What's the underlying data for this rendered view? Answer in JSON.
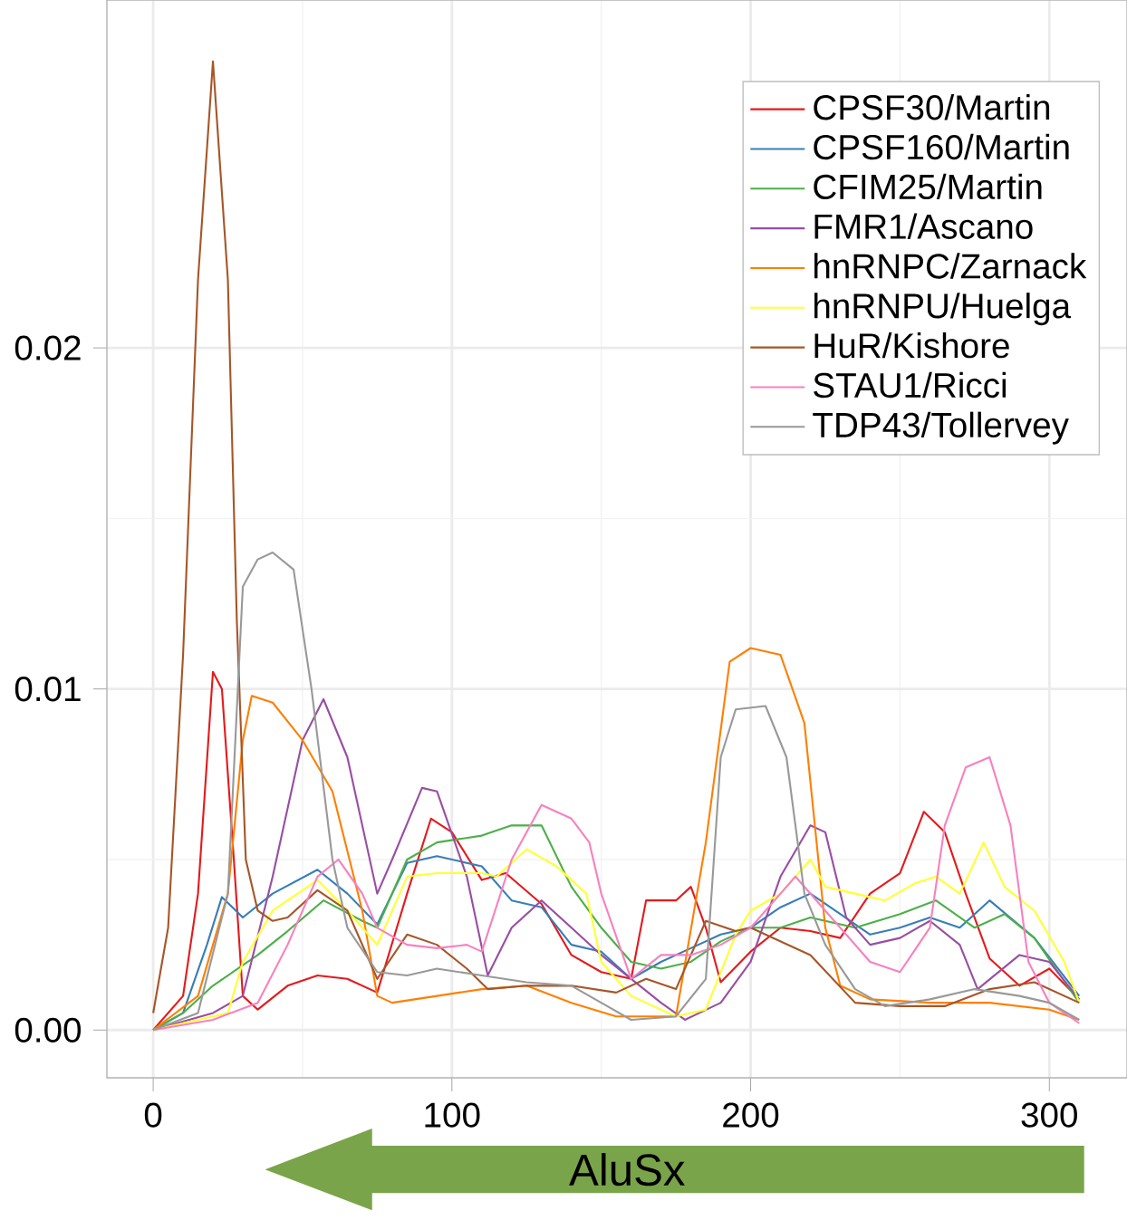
{
  "chart_data": {
    "type": "line",
    "xlim": [
      -15.5,
      326
    ],
    "ylim": [
      -0.0014,
      0.0302
    ],
    "xticks": [
      0,
      100,
      200,
      300
    ],
    "yticks": [
      {
        "value": 0,
        "label": "0.00"
      },
      {
        "value": 0.01,
        "label": "0.01"
      },
      {
        "value": 0.02,
        "label": "0.02"
      }
    ],
    "grid": true,
    "legend": "top right",
    "marker": "none",
    "line_style": "solid",
    "annotations": [
      "AluSx"
    ],
    "series": [
      {
        "name": "CPSF30/Martin",
        "color": "#e41a1c",
        "x": [
          0,
          10,
          15,
          20,
          23,
          27,
          30,
          35,
          45,
          55,
          65,
          75,
          85,
          93,
          100,
          110,
          118,
          130,
          140,
          150,
          160,
          165,
          175,
          180,
          185,
          190,
          200,
          210,
          220,
          230,
          240,
          250,
          258,
          265,
          272,
          280,
          290,
          300,
          310
        ],
        "values": [
          0,
          0.001,
          0.004,
          0.0105,
          0.01,
          0.005,
          0.001,
          0.0006,
          0.0013,
          0.0016,
          0.0015,
          0.0011,
          0.004,
          0.0062,
          0.0058,
          0.0044,
          0.0046,
          0.0037,
          0.0022,
          0.0017,
          0.0015,
          0.0038,
          0.0038,
          0.0042,
          0.003,
          0.0014,
          0.0023,
          0.003,
          0.0029,
          0.0027,
          0.004,
          0.0046,
          0.0064,
          0.0058,
          0.004,
          0.0021,
          0.0013,
          0.0018,
          0.0009
        ]
      },
      {
        "name": "CPSF160/Martin",
        "color": "#377eb8",
        "x": [
          0,
          10,
          18,
          23,
          30,
          40,
          55,
          65,
          75,
          85,
          95,
          110,
          120,
          130,
          140,
          150,
          160,
          170,
          180,
          190,
          200,
          210,
          220,
          230,
          240,
          250,
          260,
          270,
          280,
          295,
          310
        ],
        "values": [
          0,
          0.0005,
          0.0025,
          0.0039,
          0.0033,
          0.004,
          0.0047,
          0.004,
          0.0031,
          0.0049,
          0.0051,
          0.0048,
          0.0038,
          0.0036,
          0.0025,
          0.0023,
          0.0015,
          0.002,
          0.0024,
          0.0028,
          0.003,
          0.0036,
          0.004,
          0.0034,
          0.0028,
          0.003,
          0.0033,
          0.003,
          0.0038,
          0.0027,
          0.001
        ]
      },
      {
        "name": "CFIM25/Martin",
        "color": "#4daf4a",
        "x": [
          0,
          10,
          20,
          35,
          45,
          57,
          70,
          75,
          85,
          95,
          110,
          120,
          130,
          140,
          150,
          160,
          170,
          180,
          190,
          200,
          210,
          220,
          235,
          250,
          262,
          275,
          285,
          295,
          310
        ],
        "values": [
          0,
          0.0005,
          0.0013,
          0.0022,
          0.0029,
          0.0038,
          0.0032,
          0.003,
          0.005,
          0.0055,
          0.0057,
          0.006,
          0.006,
          0.0042,
          0.003,
          0.002,
          0.0018,
          0.002,
          0.0026,
          0.003,
          0.003,
          0.0033,
          0.003,
          0.0034,
          0.0038,
          0.003,
          0.0034,
          0.0027,
          0.0008
        ]
      },
      {
        "name": "FMR1/Ascano",
        "color": "#984ea3",
        "x": [
          0,
          20,
          30,
          40,
          50,
          57,
          65,
          75,
          80,
          90,
          95,
          105,
          112,
          120,
          130,
          140,
          150,
          160,
          170,
          178,
          190,
          200,
          210,
          220,
          225,
          232,
          240,
          250,
          260,
          270,
          276,
          290,
          300,
          310
        ],
        "values": [
          0,
          0.0005,
          0.001,
          0.0045,
          0.0085,
          0.0097,
          0.008,
          0.004,
          0.005,
          0.0071,
          0.007,
          0.0045,
          0.0016,
          0.003,
          0.0038,
          0.003,
          0.0022,
          0.0015,
          0.0008,
          0.0003,
          0.0008,
          0.002,
          0.0045,
          0.006,
          0.0058,
          0.0033,
          0.0025,
          0.0027,
          0.0032,
          0.0025,
          0.0012,
          0.0022,
          0.002,
          0.0009
        ]
      },
      {
        "name": "hnRNPC/Zarnack",
        "color": "#ff7f00",
        "x": [
          0,
          15,
          25,
          30,
          33,
          40,
          50,
          60,
          70,
          75,
          80,
          95,
          110,
          125,
          140,
          155,
          175,
          185,
          193,
          200,
          210,
          218,
          225,
          230,
          240,
          260,
          280,
          300,
          310
        ],
        "values": [
          0,
          0.001,
          0.004,
          0.0085,
          0.0098,
          0.0096,
          0.0085,
          0.007,
          0.0035,
          0.001,
          0.0008,
          0.001,
          0.0012,
          0.0013,
          0.0008,
          0.0004,
          0.0004,
          0.0055,
          0.0108,
          0.0112,
          0.011,
          0.009,
          0.003,
          0.0013,
          0.0009,
          0.0008,
          0.0008,
          0.0006,
          0.0003
        ]
      },
      {
        "name": "hnRNPU/Huelga",
        "color": "#ffff33",
        "x": [
          0,
          25,
          30,
          40,
          55,
          65,
          75,
          85,
          95,
          110,
          115,
          125,
          135,
          145,
          150,
          160,
          175,
          185,
          195,
          200,
          210,
          220,
          225,
          235,
          245,
          255,
          262,
          270,
          278,
          285,
          295,
          305,
          310
        ],
        "values": [
          0,
          0.0005,
          0.002,
          0.0035,
          0.0044,
          0.0035,
          0.0025,
          0.0045,
          0.0046,
          0.0046,
          0.0045,
          0.0053,
          0.0048,
          0.004,
          0.002,
          0.001,
          0.0004,
          0.0006,
          0.0028,
          0.0035,
          0.004,
          0.005,
          0.0042,
          0.004,
          0.0038,
          0.0043,
          0.0045,
          0.004,
          0.0055,
          0.0042,
          0.0035,
          0.002,
          0.0008
        ]
      },
      {
        "name": "HuR/Kishore",
        "color": "#a65628",
        "x": [
          0,
          5,
          10,
          15,
          20,
          25,
          28,
          31,
          35,
          40,
          45,
          55,
          65,
          75,
          85,
          95,
          105,
          112,
          125,
          140,
          155,
          165,
          175,
          185,
          195,
          200,
          210,
          220,
          235,
          250,
          265,
          280,
          295,
          310
        ],
        "values": [
          0.0005,
          0.003,
          0.011,
          0.022,
          0.0284,
          0.022,
          0.012,
          0.005,
          0.0035,
          0.0032,
          0.0033,
          0.0041,
          0.0035,
          0.0015,
          0.0028,
          0.0025,
          0.0018,
          0.0012,
          0.0013,
          0.0013,
          0.0011,
          0.0015,
          0.0012,
          0.0032,
          0.0029,
          0.003,
          0.0026,
          0.0022,
          0.0008,
          0.0007,
          0.0007,
          0.0012,
          0.0014,
          0.0008
        ]
      },
      {
        "name": "STAU1/Ricci",
        "color": "#f781bf",
        "x": [
          0,
          20,
          35,
          45,
          55,
          62,
          70,
          75,
          85,
          95,
          105,
          110,
          120,
          130,
          140,
          146,
          150,
          160,
          170,
          180,
          190,
          200,
          210,
          215,
          225,
          240,
          250,
          260,
          265,
          272,
          280,
          287,
          293,
          300,
          310
        ],
        "values": [
          0,
          0.0003,
          0.0008,
          0.0025,
          0.0045,
          0.005,
          0.004,
          0.003,
          0.0025,
          0.0024,
          0.0025,
          0.0023,
          0.005,
          0.0066,
          0.0062,
          0.0055,
          0.004,
          0.0015,
          0.0022,
          0.0022,
          0.0025,
          0.003,
          0.004,
          0.0045,
          0.0035,
          0.002,
          0.0017,
          0.003,
          0.006,
          0.0077,
          0.008,
          0.006,
          0.002,
          0.0008,
          0.0002
        ]
      },
      {
        "name": "TDP43/Tollervey",
        "color": "#999999",
        "x": [
          0,
          15,
          25,
          30,
          35,
          40,
          47,
          53,
          60,
          65,
          75,
          85,
          95,
          110,
          125,
          140,
          150,
          160,
          175,
          185,
          190,
          195,
          205,
          212,
          218,
          225,
          235,
          245,
          260,
          275,
          290,
          300,
          310
        ],
        "values": [
          0,
          0.0005,
          0.004,
          0.013,
          0.0138,
          0.014,
          0.0135,
          0.01,
          0.005,
          0.003,
          0.0017,
          0.0016,
          0.0018,
          0.0016,
          0.0014,
          0.0013,
          0.0008,
          0.0003,
          0.0004,
          0.0015,
          0.008,
          0.0094,
          0.0095,
          0.008,
          0.004,
          0.0025,
          0.0012,
          0.0007,
          0.0009,
          0.0012,
          0.001,
          0.0008,
          0.0003
        ]
      }
    ]
  }
}
